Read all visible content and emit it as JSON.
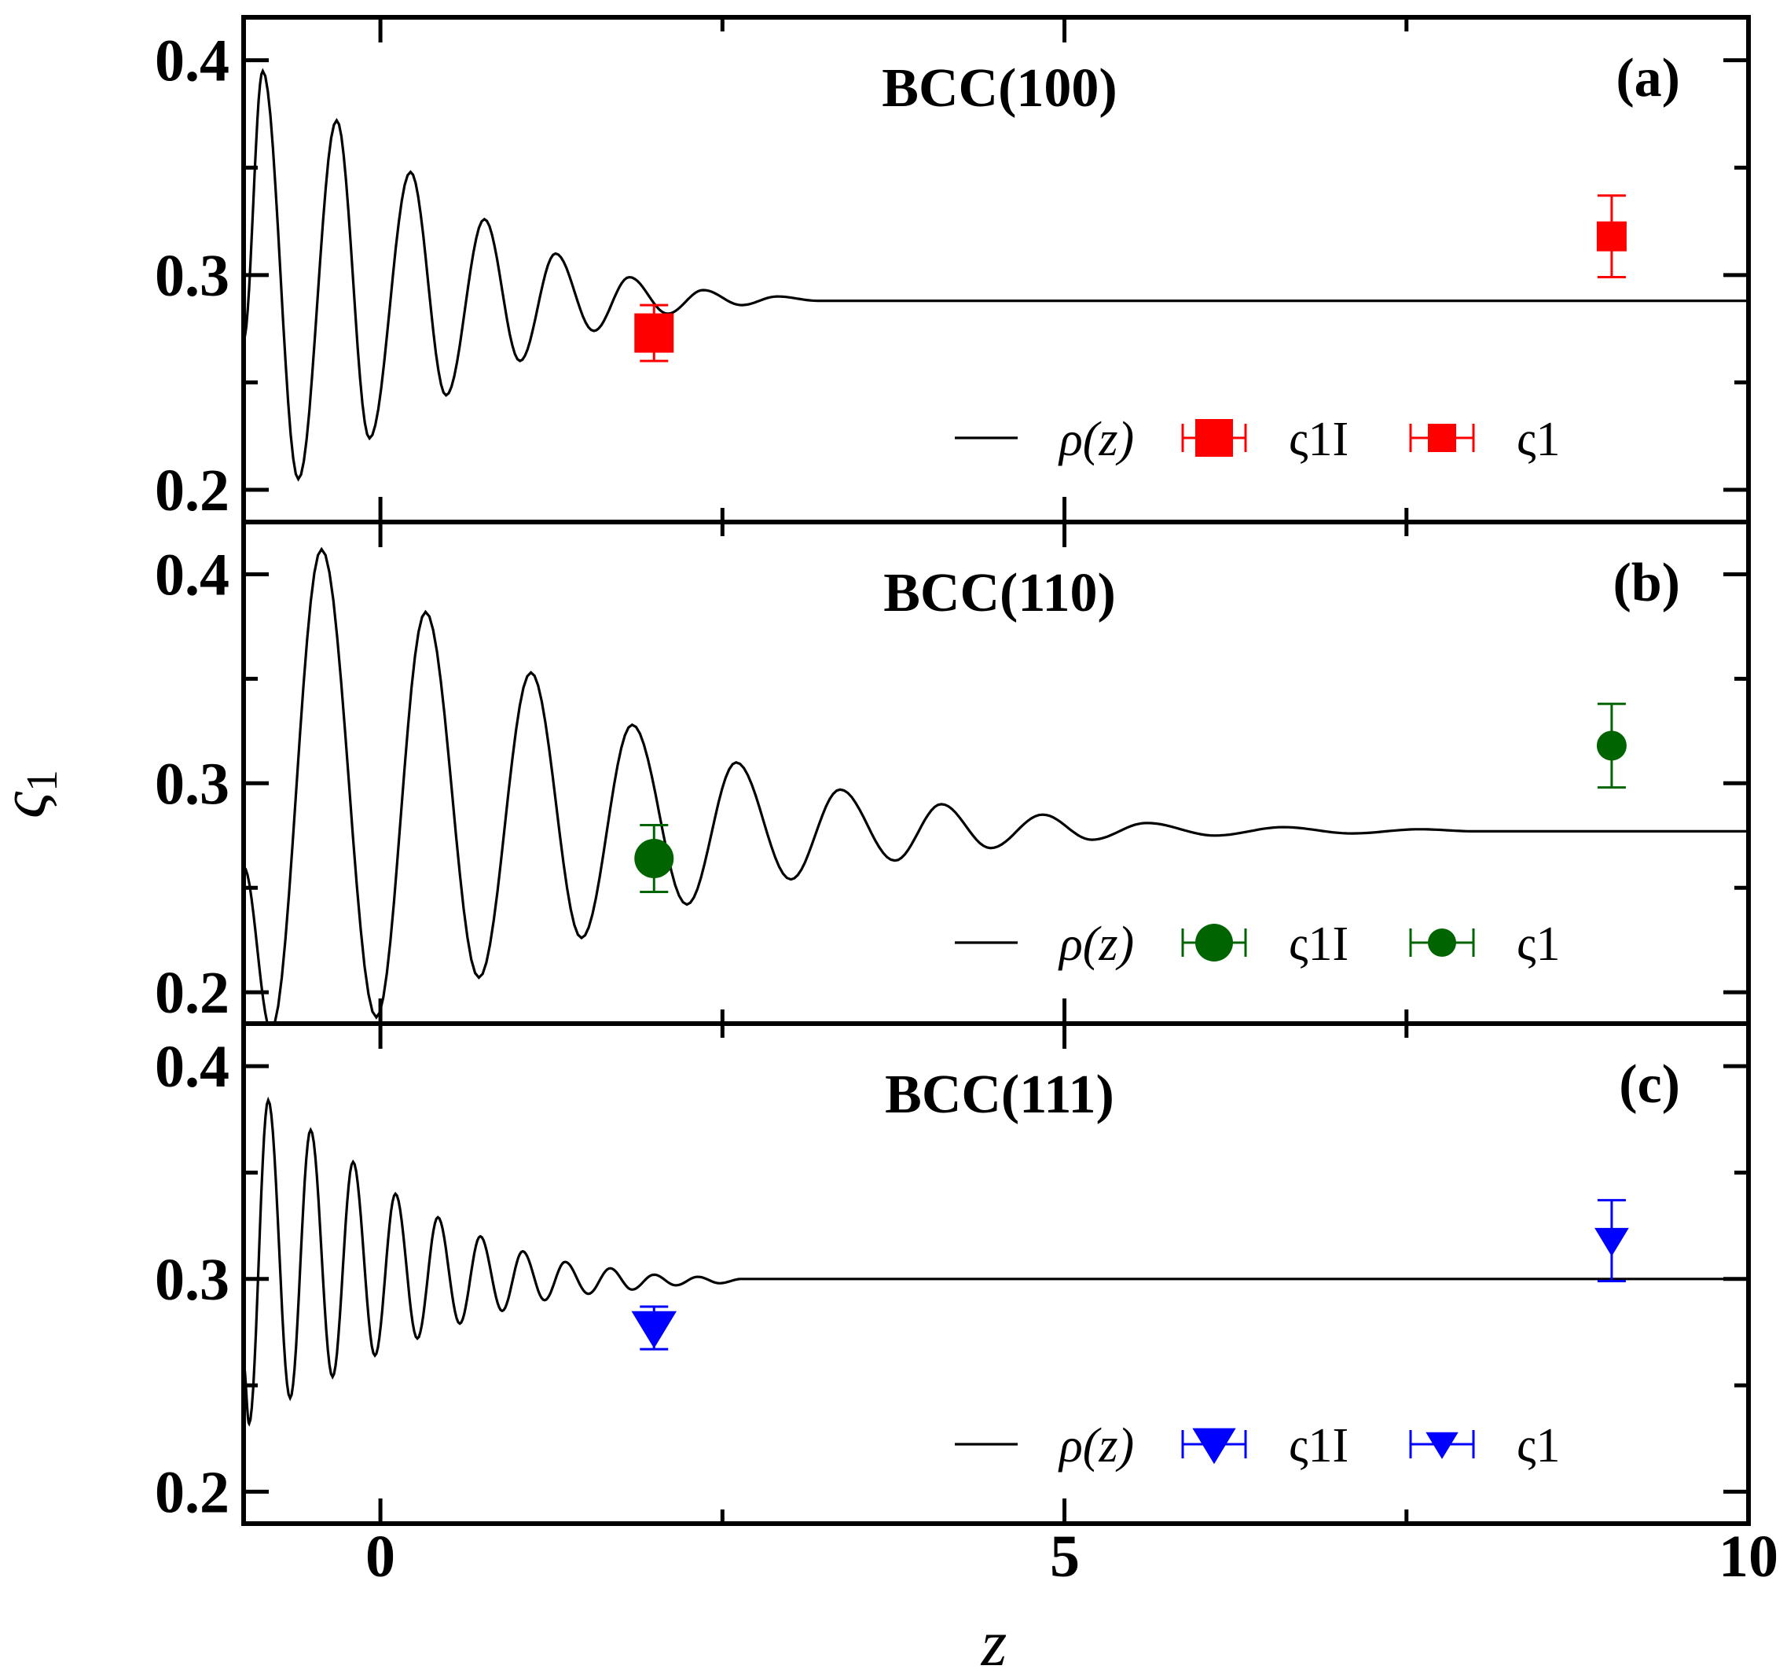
{
  "chart_data": [
    {
      "type": "line",
      "panel_tag": "(a)",
      "title": "BCC(100)",
      "color": "#ff0000",
      "marker": "square",
      "xlim": [
        -1,
        10
      ],
      "ylim": [
        0.185,
        0.42
      ],
      "yticks": [
        0.2,
        0.3,
        0.4
      ],
      "ytick_labels": [
        "0.2",
        "0.3",
        "0.4"
      ],
      "rho_profile": {
        "peaks": [
          [
            -0.86,
            0.395
          ],
          [
            -0.32,
            0.372
          ],
          [
            0.22,
            0.348
          ],
          [
            0.76,
            0.326
          ],
          [
            1.28,
            0.31
          ],
          [
            1.82,
            0.299
          ],
          [
            2.36,
            0.293
          ],
          [
            2.9,
            0.29
          ]
        ],
        "troughs": [
          [
            -0.6,
            0.205
          ],
          [
            -0.08,
            0.224
          ],
          [
            0.48,
            0.244
          ],
          [
            1.02,
            0.26
          ],
          [
            1.56,
            0.274
          ],
          [
            2.1,
            0.282
          ],
          [
            2.64,
            0.286
          ],
          [
            3.2,
            0.288
          ]
        ],
        "x_start": -1,
        "y_start": 0.27,
        "plateau": 0.288
      },
      "points": [
        {
          "series": "ς1I",
          "x": 2.0,
          "y": 0.273,
          "err": 0.013
        },
        {
          "series": "ς1",
          "x": 9.0,
          "y": 0.318,
          "err": 0.019
        }
      ],
      "legend": [
        {
          "label": "ρ(z)",
          "kind": "line"
        },
        {
          "label": "ς1I",
          "kind": "marker-large"
        },
        {
          "label": "ς1",
          "kind": "marker-small"
        }
      ]
    },
    {
      "type": "line",
      "panel_tag": "(b)",
      "title": "BCC(110)",
      "color": "#006400",
      "marker": "circle",
      "xlim": [
        -1,
        10
      ],
      "ylim": [
        0.185,
        0.425
      ],
      "yticks": [
        0.2,
        0.3,
        0.4
      ],
      "ytick_labels": [
        "0.2",
        "0.3",
        "0.4"
      ],
      "rho_profile": {
        "peaks": [
          [
            -0.43,
            0.412
          ],
          [
            0.33,
            0.382
          ],
          [
            1.1,
            0.353
          ],
          [
            1.84,
            0.328
          ],
          [
            2.6,
            0.31
          ],
          [
            3.36,
            0.297
          ],
          [
            4.1,
            0.29
          ],
          [
            4.84,
            0.285
          ],
          [
            5.6,
            0.281
          ],
          [
            6.6,
            0.279
          ],
          [
            7.6,
            0.278
          ]
        ],
        "troughs": [
          [
            -0.8,
            0.182
          ],
          [
            -0.03,
            0.188
          ],
          [
            0.72,
            0.207
          ],
          [
            1.47,
            0.226
          ],
          [
            2.24,
            0.242
          ],
          [
            3.0,
            0.254
          ],
          [
            3.76,
            0.263
          ],
          [
            4.46,
            0.269
          ],
          [
            5.2,
            0.273
          ],
          [
            6.1,
            0.275
          ],
          [
            7.1,
            0.276
          ]
        ],
        "x_start": -1,
        "y_start": 0.26,
        "plateau": 0.277
      },
      "points": [
        {
          "series": "ς1I",
          "x": 2.0,
          "y": 0.264,
          "err": 0.016
        },
        {
          "series": "ς1",
          "x": 9.0,
          "y": 0.318,
          "err": 0.02
        }
      ],
      "legend": [
        {
          "label": "ρ(z)",
          "kind": "line"
        },
        {
          "label": "ς1I",
          "kind": "marker-large"
        },
        {
          "label": "ς1",
          "kind": "marker-small"
        }
      ]
    },
    {
      "type": "line",
      "panel_tag": "(c)",
      "title": "BCC(111)",
      "color": "#0000ff",
      "marker": "triangle-down",
      "xlim": [
        -1,
        10
      ],
      "ylim": [
        0.185,
        0.42
      ],
      "yticks": [
        0.2,
        0.3,
        0.4
      ],
      "ytick_labels": [
        "0.2",
        "0.3",
        "0.4"
      ],
      "rho_profile": {
        "peaks": [
          [
            -0.82,
            0.384
          ],
          [
            -0.51,
            0.37
          ],
          [
            -0.2,
            0.355
          ],
          [
            0.11,
            0.34
          ],
          [
            0.42,
            0.329
          ],
          [
            0.73,
            0.32
          ],
          [
            1.04,
            0.313
          ],
          [
            1.35,
            0.308
          ],
          [
            1.68,
            0.305
          ],
          [
            2.0,
            0.302
          ],
          [
            2.32,
            0.301
          ],
          [
            2.64,
            0.3
          ]
        ],
        "troughs": [
          [
            -0.96,
            0.232
          ],
          [
            -0.66,
            0.244
          ],
          [
            -0.35,
            0.254
          ],
          [
            -0.04,
            0.264
          ],
          [
            0.27,
            0.272
          ],
          [
            0.58,
            0.279
          ],
          [
            0.89,
            0.285
          ],
          [
            1.2,
            0.29
          ],
          [
            1.52,
            0.293
          ],
          [
            1.84,
            0.295
          ],
          [
            2.16,
            0.297
          ],
          [
            2.48,
            0.298
          ]
        ],
        "x_start": -1,
        "y_start": 0.26,
        "plateau": 0.3
      },
      "points": [
        {
          "series": "ς1I",
          "x": 2.0,
          "y": 0.277,
          "err": 0.01
        },
        {
          "series": "ς1",
          "x": 9.0,
          "y": 0.318,
          "err": 0.019
        }
      ],
      "legend": [
        {
          "label": "ρ(z)",
          "kind": "line"
        },
        {
          "label": "ς1I",
          "kind": "marker-large"
        },
        {
          "label": "ς1",
          "kind": "marker-small"
        }
      ]
    }
  ],
  "shared": {
    "xticks": [
      0,
      5,
      10
    ],
    "xtick_labels": [
      "0",
      "5",
      "10"
    ],
    "xlabel": "z",
    "ylabel": "ς1"
  }
}
